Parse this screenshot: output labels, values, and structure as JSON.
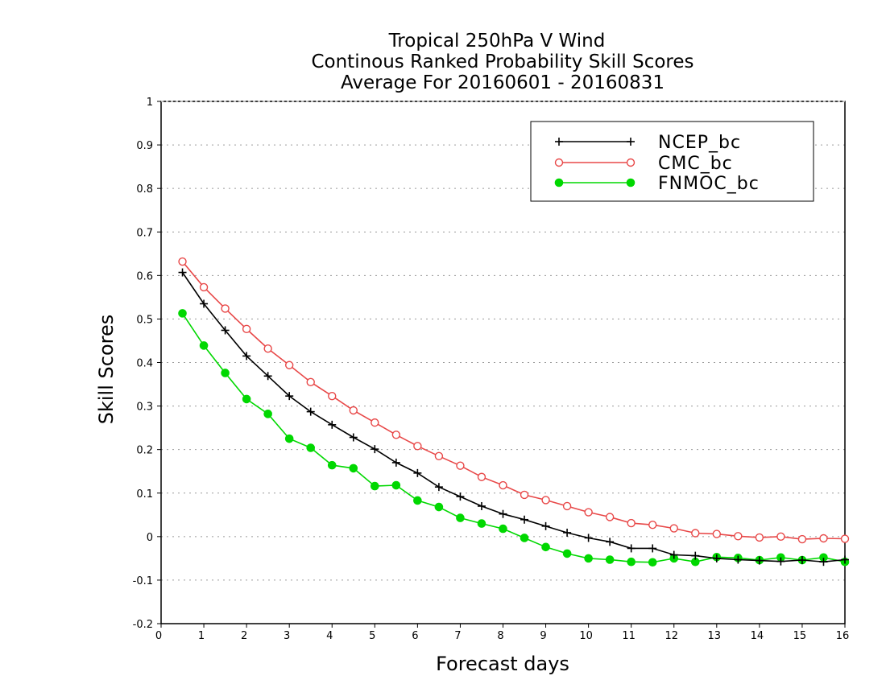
{
  "chart_data": {
    "type": "line",
    "title_lines": [
      "Tropical 250hPa V Wind",
      "Continous Ranked Probability Skill Scores",
      "Average For 20160601 - 20160831"
    ],
    "xlabel": "Forecast days",
    "ylabel": "Skill Scores",
    "xlim": [
      0,
      16
    ],
    "ylim": [
      -0.2,
      1
    ],
    "x_ticks": [
      0,
      1,
      2,
      3,
      4,
      5,
      6,
      7,
      8,
      9,
      10,
      11,
      12,
      13,
      14,
      15,
      16
    ],
    "y_ticks": [
      -0.2,
      -0.1,
      0,
      0.1,
      0.2,
      0.3,
      0.4,
      0.5,
      0.6,
      0.7,
      0.8,
      0.9,
      1
    ],
    "y_tick_labels": [
      "-0.2",
      "-0.1",
      "0",
      "0.1",
      "0.2",
      "0.3",
      "0.4",
      "0.5",
      "0.6",
      "0.7",
      "0.8",
      "0.9",
      "1"
    ],
    "grid": "horizontal dotted",
    "legend_position": "top-right",
    "x": [
      0.5,
      1,
      1.5,
      2,
      2.5,
      3,
      3.5,
      4,
      4.5,
      5,
      5.5,
      6,
      6.5,
      7,
      7.5,
      8,
      8.5,
      9,
      9.5,
      10,
      10.5,
      11,
      11.5,
      12,
      12.5,
      13,
      13.5,
      14,
      14.5,
      15,
      15.5,
      16
    ],
    "series": [
      {
        "name": "NCEP_bc",
        "color": "#000000",
        "marker": "plus",
        "values": [
          0.607,
          0.535,
          0.474,
          0.415,
          0.369,
          0.323,
          0.287,
          0.257,
          0.228,
          0.201,
          0.17,
          0.146,
          0.114,
          0.092,
          0.07,
          0.052,
          0.039,
          0.024,
          0.009,
          -0.003,
          -0.012,
          -0.027,
          -0.027,
          -0.042,
          -0.044,
          -0.05,
          -0.053,
          -0.055,
          -0.057,
          -0.054,
          -0.058,
          -0.053
        ]
      },
      {
        "name": "CMC_bc",
        "color": "#e84848",
        "marker": "open-circle",
        "values": [
          0.632,
          0.573,
          0.524,
          0.477,
          0.432,
          0.394,
          0.355,
          0.323,
          0.29,
          0.262,
          0.234,
          0.208,
          0.185,
          0.163,
          0.137,
          0.118,
          0.096,
          0.084,
          0.07,
          0.056,
          0.045,
          0.031,
          0.027,
          0.019,
          0.008,
          0.006,
          0.001,
          -0.002,
          0.0,
          -0.006,
          -0.004,
          -0.005
        ]
      },
      {
        "name": "FNMOC_bc",
        "color": "#00d800",
        "marker": "filled-circle",
        "values": [
          0.513,
          0.439,
          0.376,
          0.316,
          0.282,
          0.225,
          0.204,
          0.164,
          0.157,
          0.116,
          0.118,
          0.083,
          0.068,
          0.043,
          0.03,
          0.018,
          -0.003,
          -0.024,
          -0.039,
          -0.05,
          -0.053,
          -0.058,
          -0.059,
          -0.05,
          -0.058,
          -0.047,
          -0.049,
          -0.054,
          -0.048,
          -0.054,
          -0.048,
          -0.058
        ]
      }
    ]
  }
}
